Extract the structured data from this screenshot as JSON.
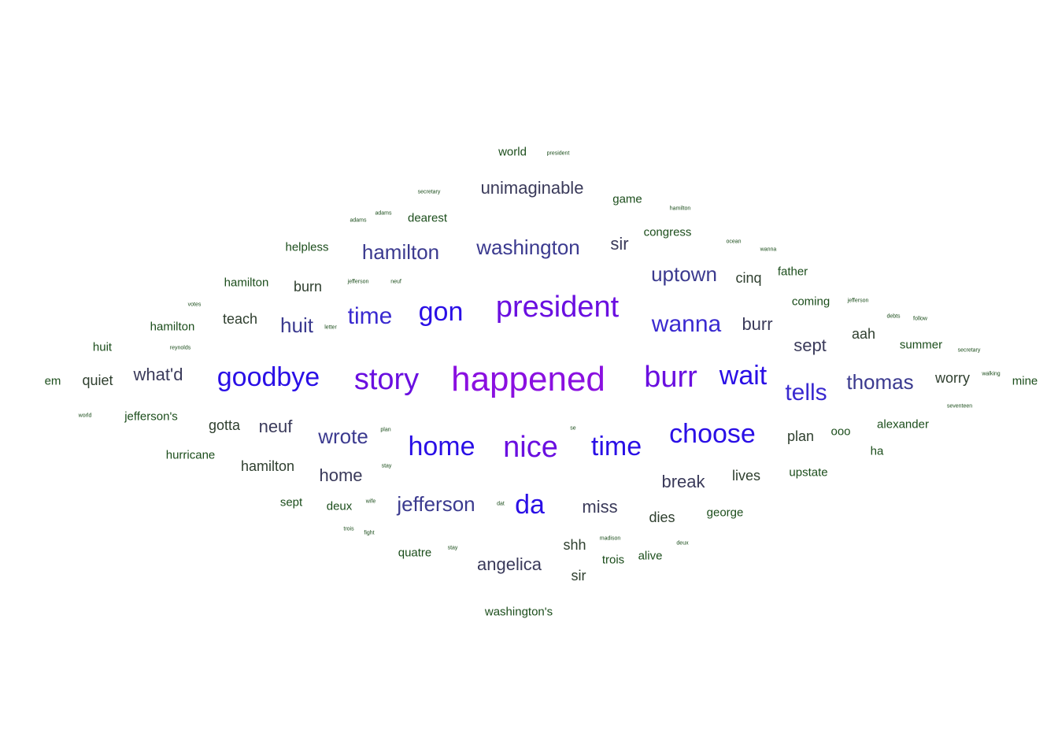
{
  "chart_data": {
    "type": "wordcloud",
    "title": "",
    "colors": {
      "tier_1": "#1b4d1b",
      "tier_2": "#2f3f2f",
      "tier_3": "#3a3a5a",
      "tier_4": "#3b3a8f",
      "tier_5": "#3a2ad0",
      "tier_6": "#2a0fe6",
      "tier_7": "#6a0fe0",
      "tier_8": "#8a10e0"
    },
    "words": [
      {
        "text": "happened",
        "tier": 8
      },
      {
        "text": "president",
        "tier": 7
      },
      {
        "text": "story",
        "tier": 7
      },
      {
        "text": "nice",
        "tier": 7
      },
      {
        "text": "burr",
        "tier": 7
      },
      {
        "text": "goodbye",
        "tier": 6
      },
      {
        "text": "gon",
        "tier": 6
      },
      {
        "text": "wait",
        "tier": 6
      },
      {
        "text": "home",
        "tier": 6
      },
      {
        "text": "time",
        "tier": 6
      },
      {
        "text": "choose",
        "tier": 6
      },
      {
        "text": "da",
        "tier": 6
      },
      {
        "text": "wanna",
        "tier": 5
      },
      {
        "text": "tells",
        "tier": 5
      },
      {
        "text": "time",
        "tier": 5
      },
      {
        "text": "washington",
        "tier": 4
      },
      {
        "text": "hamilton",
        "tier": 4
      },
      {
        "text": "jefferson",
        "tier": 4
      },
      {
        "text": "wrote",
        "tier": 4
      },
      {
        "text": "uptown",
        "tier": 4
      },
      {
        "text": "thomas",
        "tier": 4
      },
      {
        "text": "huit",
        "tier": 4
      },
      {
        "text": "unimaginable",
        "tier": 3
      },
      {
        "text": "sir",
        "tier": 3
      },
      {
        "text": "what'd",
        "tier": 3
      },
      {
        "text": "neuf",
        "tier": 3
      },
      {
        "text": "home",
        "tier": 3
      },
      {
        "text": "miss",
        "tier": 3
      },
      {
        "text": "angelica",
        "tier": 3
      },
      {
        "text": "break",
        "tier": 3
      },
      {
        "text": "sept",
        "tier": 3
      },
      {
        "text": "burr",
        "tier": 3
      },
      {
        "text": "worry",
        "tier": 2
      },
      {
        "text": "aah",
        "tier": 2
      },
      {
        "text": "teach",
        "tier": 2
      },
      {
        "text": "burn",
        "tier": 2
      },
      {
        "text": "gotta",
        "tier": 2
      },
      {
        "text": "hamilton",
        "tier": 2
      },
      {
        "text": "quiet",
        "tier": 2
      },
      {
        "text": "shh",
        "tier": 2
      },
      {
        "text": "dies",
        "tier": 2
      },
      {
        "text": "lives",
        "tier": 2
      },
      {
        "text": "plan",
        "tier": 2
      },
      {
        "text": "sir",
        "tier": 2
      },
      {
        "text": "cinq",
        "tier": 2
      },
      {
        "text": "world",
        "tier": 1
      },
      {
        "text": "game",
        "tier": 1
      },
      {
        "text": "dearest",
        "tier": 1
      },
      {
        "text": "congress",
        "tier": 1
      },
      {
        "text": "helpless",
        "tier": 1
      },
      {
        "text": "father",
        "tier": 1
      },
      {
        "text": "hamilton",
        "tier": 1
      },
      {
        "text": "coming",
        "tier": 1
      },
      {
        "text": "hamilton",
        "tier": 1
      },
      {
        "text": "huit",
        "tier": 1
      },
      {
        "text": "summer",
        "tier": 1
      },
      {
        "text": "em",
        "tier": 1
      },
      {
        "text": "mine",
        "tier": 1
      },
      {
        "text": "jefferson's",
        "tier": 1
      },
      {
        "text": "alexander",
        "tier": 1
      },
      {
        "text": "ooo",
        "tier": 1
      },
      {
        "text": "hurricane",
        "tier": 1
      },
      {
        "text": "ha",
        "tier": 1
      },
      {
        "text": "upstate",
        "tier": 1
      },
      {
        "text": "sept",
        "tier": 1
      },
      {
        "text": "deux",
        "tier": 1
      },
      {
        "text": "george",
        "tier": 1
      },
      {
        "text": "quatre",
        "tier": 1
      },
      {
        "text": "alive",
        "tier": 1
      },
      {
        "text": "trois",
        "tier": 1
      },
      {
        "text": "washington's",
        "tier": 1
      },
      {
        "text": "president",
        "tier": 0
      },
      {
        "text": "secretary",
        "tier": 0
      },
      {
        "text": "adams",
        "tier": 0
      },
      {
        "text": "adams",
        "tier": 0
      },
      {
        "text": "hamilton",
        "tier": 0
      },
      {
        "text": "ocean",
        "tier": 0
      },
      {
        "text": "wanna",
        "tier": 0
      },
      {
        "text": "jefferson",
        "tier": 0
      },
      {
        "text": "neuf",
        "tier": 0
      },
      {
        "text": "votes",
        "tier": 0
      },
      {
        "text": "jefferson",
        "tier": 0
      },
      {
        "text": "letter",
        "tier": 0
      },
      {
        "text": "debts",
        "tier": 0
      },
      {
        "text": "follow",
        "tier": 0
      },
      {
        "text": "reynolds",
        "tier": 0
      },
      {
        "text": "secretary",
        "tier": 0
      },
      {
        "text": "walking",
        "tier": 0
      },
      {
        "text": "world",
        "tier": 0
      },
      {
        "text": "seventeen",
        "tier": 0
      },
      {
        "text": "plan",
        "tier": 0
      },
      {
        "text": "se",
        "tier": 0
      },
      {
        "text": "stay",
        "tier": 0
      },
      {
        "text": "wife",
        "tier": 0
      },
      {
        "text": "dat",
        "tier": 0
      },
      {
        "text": "trois",
        "tier": 0
      },
      {
        "text": "fight",
        "tier": 0
      },
      {
        "text": "madison",
        "tier": 0
      },
      {
        "text": "stay",
        "tier": 0
      },
      {
        "text": "deux",
        "tier": 0
      }
    ]
  }
}
